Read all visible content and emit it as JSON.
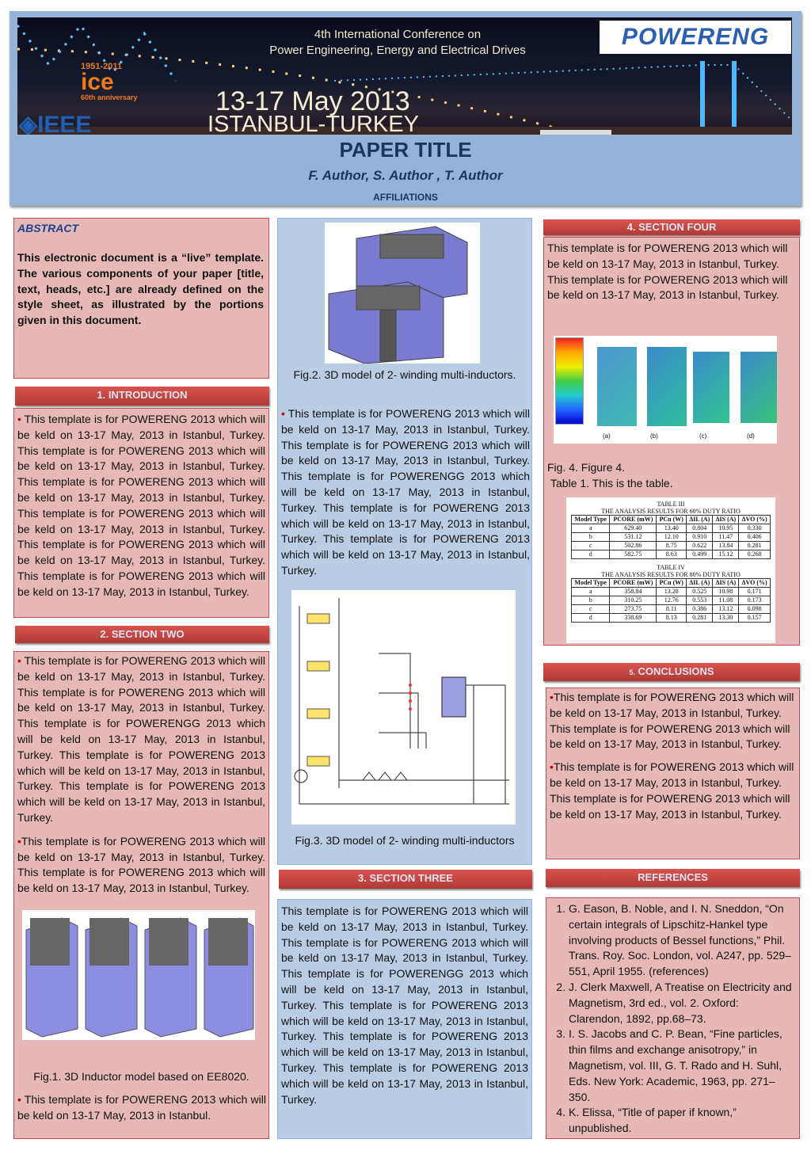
{
  "header": {
    "conference_line1": "4th International Conference on",
    "conference_line2": "Power Engineering, Energy and Electrical Drives",
    "logo_powereng": "POWERENG",
    "logo_ice": "1951-2011 ICE 60th anniversary",
    "logo_ieee": "IEEE",
    "dates": "13-17 May 2013",
    "city": "ISTANBUL-TURKEY",
    "title": "PAPER TITLE",
    "authors": "F. Author, S. Author , T. Author",
    "affiliations": "AFFILIATIONS"
  },
  "abstract": {
    "heading": "ABSTRACT",
    "text": "This electronic document is a “live” template. The various components of your paper [title, text, heads, etc.] are already defined on the style sheet, as illustrated by the portions given in this document."
  },
  "intro": {
    "heading": "1. INTRODUCTION",
    "bullet": "•",
    "text": "This template is for POWERENG 2013 which will be keld on 13-17 May, 2013 in Istanbul, Turkey. This template is for POWERENG 2013 which will be keld on 13-17 May, 2013 in Istanbul, Turkey. This template is for POWERENG 2013 which will be keld on 13-17 May, 2013 in Istanbul, Turkey. This template is for POWERENG 2013 which will be keld on 13-17 May, 2013 in Istanbul, Turkey. This template is for POWERENG 2013 which will be keld on 13-17 May, 2013 in Istanbul, Turkey. This template is for POWERENG 2013 which will be keld on 13-17 May, 2013 in Istanbul, Turkey."
  },
  "section2": {
    "heading": "2. SECTION TWO",
    "bullet": "•",
    "p1": "This template is for POWERENG 2013 which will be keld on 13-17 May, 2013 in Istanbul, Turkey. This template is for POWERENG 2013 which will be keld on 13-17 May, 2013 in Istanbul, Turkey. This template is for POWERENGG 2013 which will be keld on 13-17 May, 2013 in Istanbul, Turkey. This template is for POWERENG 2013 which will be keld on 13-17 May, 2013 in Istanbul, Turkey. This template is for POWERENG 2013 which will be keld on 13-17 May, 2013 in Istanbul, Turkey.",
    "p2": "This template is for POWERENG 2013 which will be keld on 13-17 May, 2013 in Istanbul, Turkey. This template is for POWERENG 2013 which will be keld on 13-17 May, 2013 in Istanbul, Turkey.",
    "fig1_caption": "Fig.1. 3D Inductor model based on EE8020.",
    "p3": "This template is for POWERENG 2013 which will be keld on 13-17 May, 2013 in Istanbul."
  },
  "middle": {
    "fig2_caption": "Fig.2. 3D model of 2- winding multi-inductors.",
    "bullet": "•",
    "text": "This template is for POWERENG 2013 which will be keld on 13-17 May, 2013 in Istanbul, Turkey. This template is for POWERENG 2013 which will be keld on 13-17 May, 2013 in Istanbul, Turkey. This template is for POWERENGG 2013 which will be keld on 13-17 May, 2013 in Istanbul, Turkey. This template is for POWERENG 2013 which will be keld on 13-17 May, 2013 in Istanbul, Turkey. This template is for POWERENG 2013 which will be keld on 13-17 May, 2013 in Istanbul, Turkey.",
    "fig3_caption": "Fig.3. 3D model of 2- winding multi-inductors"
  },
  "section3": {
    "heading": "3. SECTION THREE",
    "text": "This template is for POWERENG 2013 which will be keld on 13-17 May, 2013 in Istanbul, Turkey. This template is for POWERENG 2013 which will be keld on 13-17 May, 2013 in Istanbul, Turkey. This template is for POWERENGG 2013 which will be keld on 13-17 May, 2013 in Istanbul, Turkey. This template is for POWERENG 2013 which will be keld on 13-17 May, 2013 in Istanbul, Turkey. This template is for POWERENG 2013 which will be keld on 13-17 May, 2013 in Istanbul, Turkey. This template is for POWERENG 2013 which will be keld on 13-17 May, 2013 in Istanbul, Turkey."
  },
  "section4": {
    "heading": "4. SECTION FOUR",
    "text": "This template is for POWERENG 2013 which will be keld on 13-17 May, 2013 in Istanbul, Turkey. This template is for POWERENG 2013 which will be keld on 13-17 May, 2013 in Istanbul, Turkey.",
    "fig4_caption": "Fig. 4. Figure 4.",
    "table_caption": "Table 1. This is the table.",
    "fig4_labels": [
      "(a)",
      "(b)",
      "(c)",
      "(d)"
    ],
    "tables": [
      {
        "title": "TABLE III",
        "subtitle": "THE ANALYSIS RESULTS FOR 60% DUTY RATIO",
        "headers": [
          "Model Type",
          "PCORE (mW)",
          "PCu (W)",
          "ΔIL (A)",
          "ΔIS (A)",
          "ΔVO (%)"
        ],
        "rows": [
          [
            "a",
            "629.40",
            "13.40",
            "0.804",
            "10.95",
            "0.330"
          ],
          [
            "b",
            "531.12",
            "12.10",
            "0.910",
            "11.47",
            "0.406"
          ],
          [
            "c",
            "502.86",
            "8.75",
            "0.622",
            "13.84",
            "0.281"
          ],
          [
            "d",
            "582.75",
            "8.63",
            "0.499",
            "15.12",
            "0.268"
          ]
        ]
      },
      {
        "title": "TABLE IV",
        "subtitle": "THE ANALYSIS RESULTS FOR 80% DUTY RATIO",
        "headers": [
          "Model Type",
          "PCORE (mW)",
          "PCu (W)",
          "ΔIL (A)",
          "ΔIS (A)",
          "ΔVO (%)"
        ],
        "rows": [
          [
            "a",
            "358.84",
            "13.28",
            "0.525",
            "10.98",
            "0.171"
          ],
          [
            "b",
            "310.25",
            "12.76",
            "0.553",
            "11.08",
            "0.173"
          ],
          [
            "c",
            "273.75",
            "8.11",
            "0.386",
            "13.12",
            "0.098"
          ],
          [
            "d",
            "338.69",
            "8.13",
            "0.281",
            "13.30",
            "0.157"
          ]
        ]
      }
    ]
  },
  "conclusions": {
    "heading_num": "5.",
    "heading": "CONCLUSIONS",
    "bullet": "•",
    "p1": "This template is for POWERENG 2013 which will be keld on 13-17 May, 2013 in Istanbul, Turkey. This template is for POWERENG 2013 which will be keld on 13-17 May, 2013 in Istanbul, Turkey.",
    "p2": "This template is for POWERENG 2013 which will be keld on 13-17 May, 2013 in Istanbul, Turkey. This template is for POWERENG 2013 which will be keld on 13-17 May, 2013 in Istanbul, Turkey."
  },
  "references": {
    "heading": "REFERENCES",
    "items": [
      "G. Eason, B. Noble, and I. N. Sneddon, “On certain integrals of Lipschitz-Hankel type involving products of Bessel functions,” Phil. Trans. Roy. Soc. London, vol. A247, pp. 529–551, April 1955. (references)",
      "J. Clerk Maxwell, A Treatise on Electricity and Magnetism, 3rd ed., vol. 2. Oxford: Clarendon, 1892, pp.68–73.",
      "I. S. Jacobs and C. P. Bean, “Fine particles, thin films and exchange anisotropy,” in Magnetism, vol. III, G. T. Rado and H. Suhl, Eds. New York: Academic, 1963, pp. 271–350.",
      "K. Elissa, “Title of paper if known,” unpublished."
    ]
  },
  "colors": {
    "header_bg": "#95b3d7",
    "panel_pink": "#e6b9b8",
    "panel_blue": "#b9cde5",
    "section_bar": "#c0504d",
    "title_text": "#17375e"
  }
}
